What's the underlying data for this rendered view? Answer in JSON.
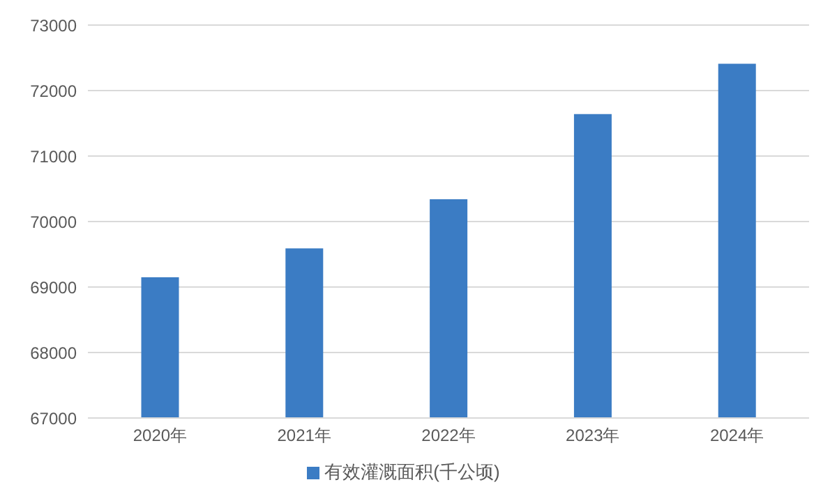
{
  "chart_data": {
    "type": "bar",
    "categories": [
      "2020年",
      "2021年",
      "2022年",
      "2023年",
      "2024年"
    ],
    "series": [
      {
        "name": "有效灌溉面积(千公顷)",
        "color": "#3b7cc4",
        "values": [
          69150,
          69590,
          70340,
          71640,
          72410
        ]
      }
    ],
    "ylim": [
      67000,
      73000
    ],
    "yticks": [
      67000,
      68000,
      69000,
      70000,
      71000,
      72000,
      73000
    ],
    "grid": "y",
    "legend": "bottom"
  }
}
